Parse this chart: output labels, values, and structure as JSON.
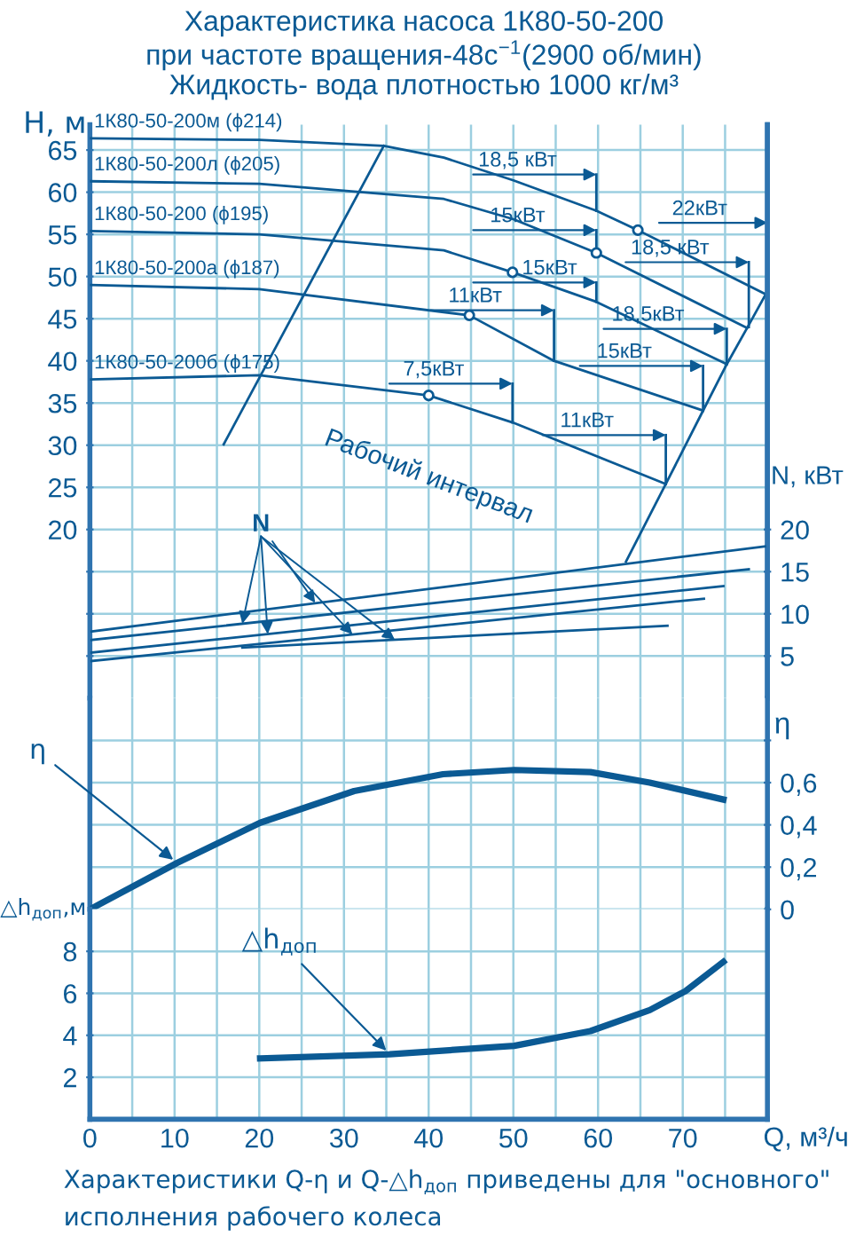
{
  "chart_data": [
    {
      "type": "line",
      "title": "Характеристика насоса 1К80-50-200",
      "subtitle": "при частоте вращения-48с$^{−1}$(2900 об/мин)\nЖидкость- вода плотностью 1000 кг/м³",
      "ylabel": "H, м",
      "y2label": "N, кВт",
      "xlim": [
        0,
        80
      ],
      "xticks": [
        0,
        5,
        10,
        15,
        20,
        25,
        30,
        35,
        40,
        45,
        50,
        55,
        60,
        65,
        70,
        75,
        80
      ],
      "ylim": [
        0,
        68
      ],
      "yticks": [
        {
          "value": 5,
          "label": null
        },
        {
          "value": 10,
          "label": null
        },
        {
          "value": 15,
          "label": null
        },
        20,
        25,
        30,
        35,
        40,
        45,
        50,
        55,
        60,
        65
      ],
      "y2lim": [
        0,
        68
      ],
      "y2ticks": [
        5,
        10,
        15,
        20
      ],
      "tick_labels": "y",
      "grid": true,
      "color": "#0b5a94",
      "series": [
        {
          "name": "1К80-50-200м (ϕ214)",
          "color": "#0b5a94",
          "x": [
            0,
            20,
            34.7,
            41.8,
            50,
            59.8,
            64.7,
            79.8
          ],
          "values": [
            66.4,
            66.2,
            65.5,
            64.1,
            61.4,
            57.8,
            55.5,
            47.9
          ]
        },
        {
          "name": "1К80-50-200л (ϕ205)",
          "color": "#0b5a94",
          "x": [
            0,
            20,
            41.8,
            50,
            59.8,
            77.6
          ],
          "values": [
            61.3,
            61.0,
            59.2,
            56.8,
            52.8,
            43.9
          ]
        },
        {
          "name": "1К80-50-200 (ϕ195)",
          "color": "#0b5a94",
          "x": [
            0,
            20,
            41.8,
            49.9,
            59.8,
            75.2
          ],
          "values": [
            55.4,
            55.0,
            53.1,
            50.5,
            47.0,
            39.6
          ]
        },
        {
          "name": "1К80-50-200а (ϕ187)",
          "color": "#0b5a94",
          "x": [
            0,
            20,
            44.8,
            54.8,
            72.4
          ],
          "values": [
            49.0,
            48.5,
            45.4,
            40.0,
            34.1
          ]
        },
        {
          "name": "1К80-50-200б (ϕ175)",
          "color": "#0b5a94",
          "x": [
            0,
            20,
            40,
            49.9,
            68
          ],
          "values": [
            37.8,
            38.3,
            35.9,
            32.7,
            25.4
          ]
        },
        {
          "color": "#0b5a94",
          "x": [
            15.8,
            34.7
          ],
          "values": [
            30.1,
            65.5
          ]
        },
        {
          "color": "#0b5a94",
          "x": [
            63.3,
            68,
            72.4,
            75.2,
            77.6,
            79.8
          ],
          "values": [
            16.2,
            25.4,
            34.1,
            39.6,
            43.9,
            47.9
          ]
        },
        {
          "color": "#0b5a94",
          "x": [
            59.8,
            59.8
          ],
          "values": [
            57.8,
            62.1
          ]
        },
        {
          "color": "#0b5a94",
          "x": [
            59.8,
            59.8
          ],
          "values": [
            52.8,
            55.5
          ]
        },
        {
          "color": "#0b5a94",
          "x": [
            77.8,
            77.8
          ],
          "values": [
            44.0,
            51.7
          ]
        },
        {
          "color": "#0b5a94",
          "x": [
            59.8,
            59.8
          ],
          "values": [
            47.0,
            49.3
          ]
        },
        {
          "color": "#0b5a94",
          "x": [
            54.8,
            54.8
          ],
          "values": [
            40.0,
            46.0
          ]
        },
        {
          "color": "#0b5a94",
          "x": [
            75.2,
            75.2
          ],
          "values": [
            39.6,
            43.8
          ]
        },
        {
          "color": "#0b5a94",
          "x": [
            72.4,
            72.4
          ],
          "values": [
            34.1,
            39.4
          ]
        },
        {
          "color": "#0b5a94",
          "x": [
            49.9,
            49.9
          ],
          "values": [
            32.7,
            37.3
          ]
        },
        {
          "color": "#0b5a94",
          "x": [
            68,
            68
          ],
          "values": [
            25.4,
            31.2
          ]
        },
        {
          "type": "scatter",
          "marker": "circle",
          "color": "#0b5a94",
          "x": [
            64.7,
            59.8,
            49.9,
            44.8,
            40
          ],
          "values": [
            55.5,
            52.8,
            50.5,
            45.4,
            35.9
          ]
        },
        {
          "axis": "y2",
          "color": "#0b5a94",
          "x": [
            0.2,
            79.7
          ],
          "values": [
            7.9,
            18.0
          ]
        },
        {
          "axis": "y2",
          "color": "#0b5a94",
          "x": [
            0.2,
            77.8
          ],
          "values": [
            6.9,
            15.3
          ]
        },
        {
          "axis": "y2",
          "color": "#0b5a94",
          "x": [
            0.2,
            74.8
          ],
          "values": [
            5.4,
            13.3
          ]
        },
        {
          "axis": "y2",
          "color": "#0b5a94",
          "x": [
            0.2,
            72.5
          ],
          "values": [
            4.4,
            11.8
          ]
        },
        {
          "axis": "y2",
          "color": "#0b5a94",
          "x": [
            18,
            68.2
          ],
          "values": [
            6.0,
            8.6
          ]
        }
      ],
      "annotations": [
        {
          "text": "18,5 кВт",
          "x": 59.8,
          "y": 62.1
        },
        {
          "text": "15кВт",
          "x": 59.8,
          "y": 55.5
        },
        "22кВт",
        {
          "text": "18,5 кВт",
          "x": 77.8,
          "y": 51.7
        },
        {
          "text": "15кВт",
          "x": 59.8,
          "y": 49.3
        },
        {
          "text": "11кВт",
          "x": 54.8,
          "y": 46.0
        },
        {
          "text": "18,5кВт",
          "x": 75.2,
          "y": 43.8
        },
        {
          "text": "15кВт",
          "x": 72.4,
          "y": 39.4
        },
        {
          "text": "7,5кВт",
          "x": 49.9,
          "y": 37.3
        },
        {
          "text": "11кВт",
          "x": 68,
          "y": 31.2
        },
        "Рабочий интервал",
        {
          "text": "N",
          "x": 26.6,
          "y": 11.3
        }
      ]
    },
    {
      "type": "line",
      "ylabel": "η",
      "xlim": [
        0,
        80
      ],
      "xticks": [
        0,
        5,
        10,
        15,
        20,
        25,
        30,
        35,
        40,
        45,
        50,
        55,
        60,
        65,
        70,
        75,
        80
      ],
      "ylim": [
        0,
        1
      ],
      "yticks": [
        {
          "value": 0,
          "label": "0"
        },
        {
          "value": 0.2,
          "label": "0,2"
        },
        {
          "value": 0.4,
          "label": "0,4"
        },
        {
          "value": 0.6,
          "label": "0,6"
        },
        {
          "value": 0.8,
          "label": null
        }
      ],
      "tick_labels": "y",
      "grid": true,
      "color": "#0b5a94",
      "x": [
        0,
        10.3,
        20.1,
        31.2,
        41.7,
        50.1,
        59.1,
        66.1,
        74.8
      ],
      "values": [
        0,
        0.22,
        0.41,
        0.56,
        0.64,
        0.66,
        0.65,
        0.6,
        0.52
      ],
      "annotations": [
        {
          "text": "η",
          "x": 10.3,
          "y": 0.22
        }
      ]
    },
    {
      "type": "line",
      "ylabel": "△h$_{доп}$,м",
      "xlabel": "Q, м³/ч",
      "xlim": [
        0,
        80
      ],
      "xticks": [
        0,
        {
          "value": 5,
          "label": null
        },
        10,
        {
          "value": 15,
          "label": null
        },
        20,
        {
          "value": 25,
          "label": null
        },
        30,
        {
          "value": 35,
          "label": null
        },
        40,
        {
          "value": 45,
          "label": null
        },
        50,
        {
          "value": 55,
          "label": null
        },
        60,
        {
          "value": 65,
          "label": null
        },
        70,
        {
          "value": 75,
          "label": null
        },
        {
          "value": 80,
          "label": null
        }
      ],
      "ylim": [
        0,
        10
      ],
      "yticks": [
        2,
        4,
        6,
        8
      ],
      "grid": true,
      "color": "#0b5a94",
      "x": [
        20.1,
        35.4,
        50.1,
        59.1,
        66.1,
        70.3,
        74.8
      ],
      "values": [
        2.9,
        3.1,
        3.5,
        4.2,
        5.2,
        6.1,
        7.5
      ],
      "annotations": [
        {
          "text": "△h$_{доп}$",
          "x": 35.4,
          "y": 3.1
        },
        "Характеристики Q-η и Q-△h$_{доп}$ приведены для \"основного\" исполнения рабочего колеса"
      ]
    }
  ]
}
